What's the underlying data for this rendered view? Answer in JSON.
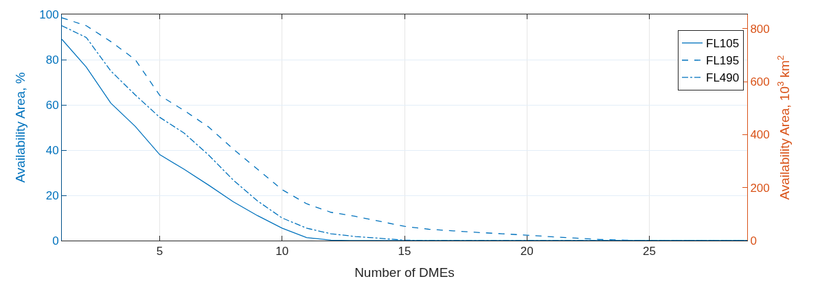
{
  "chart_data": {
    "type": "line",
    "x": [
      1,
      2,
      3,
      4,
      5,
      6,
      7,
      8,
      9,
      10,
      11,
      12,
      13,
      14,
      15,
      16,
      17,
      18,
      19,
      20,
      21,
      22,
      23,
      24,
      25,
      26,
      27,
      28,
      29
    ],
    "series": [
      {
        "name": "FL105",
        "color": "#0072bd",
        "line_style": "solid",
        "values": [
          89,
          76.7,
          60.8,
          50.5,
          38,
          31.5,
          24.5,
          17.2,
          11,
          5.5,
          1.3,
          0.2,
          0,
          0,
          0,
          0,
          0,
          0,
          0,
          0,
          0,
          0,
          0,
          0,
          0,
          0,
          0,
          0,
          0
        ]
      },
      {
        "name": "FL195",
        "color": "#0072bd",
        "line_style": "dashed",
        "values": [
          98.5,
          95,
          88,
          80,
          64.2,
          57.5,
          50.2,
          40.5,
          31.5,
          22.5,
          16.3,
          12.5,
          10.7,
          8.5,
          6.3,
          5,
          4.3,
          3.6,
          3,
          2.4,
          1.7,
          1.1,
          0.5,
          0.2,
          0,
          0,
          0,
          0,
          0
        ]
      },
      {
        "name": "FL490",
        "color": "#0072bd",
        "line_style": "dashdot",
        "values": [
          95,
          89.8,
          75,
          64.4,
          54.5,
          47.5,
          37.8,
          26.8,
          17.5,
          10,
          5.5,
          3,
          1.8,
          1,
          0.2,
          0,
          0,
          0,
          0,
          0,
          0,
          0,
          0,
          0,
          0,
          0,
          0,
          0,
          0
        ]
      }
    ],
    "xlabel": "Number of DMEs",
    "ylabel": "Availability Area, %",
    "y2label": "Availability Area, 10$^{3}$ km$^{2}$",
    "xlim": [
      1,
      29
    ],
    "xticks": [
      5,
      10,
      15,
      20,
      25
    ],
    "ylim": [
      0,
      100
    ],
    "yticks": [
      0,
      20,
      40,
      60,
      80,
      100
    ],
    "y2lim": [
      0,
      854
    ],
    "y2ticks": [
      0,
      200,
      400,
      600,
      800
    ],
    "grid": true,
    "legend": "top right"
  }
}
